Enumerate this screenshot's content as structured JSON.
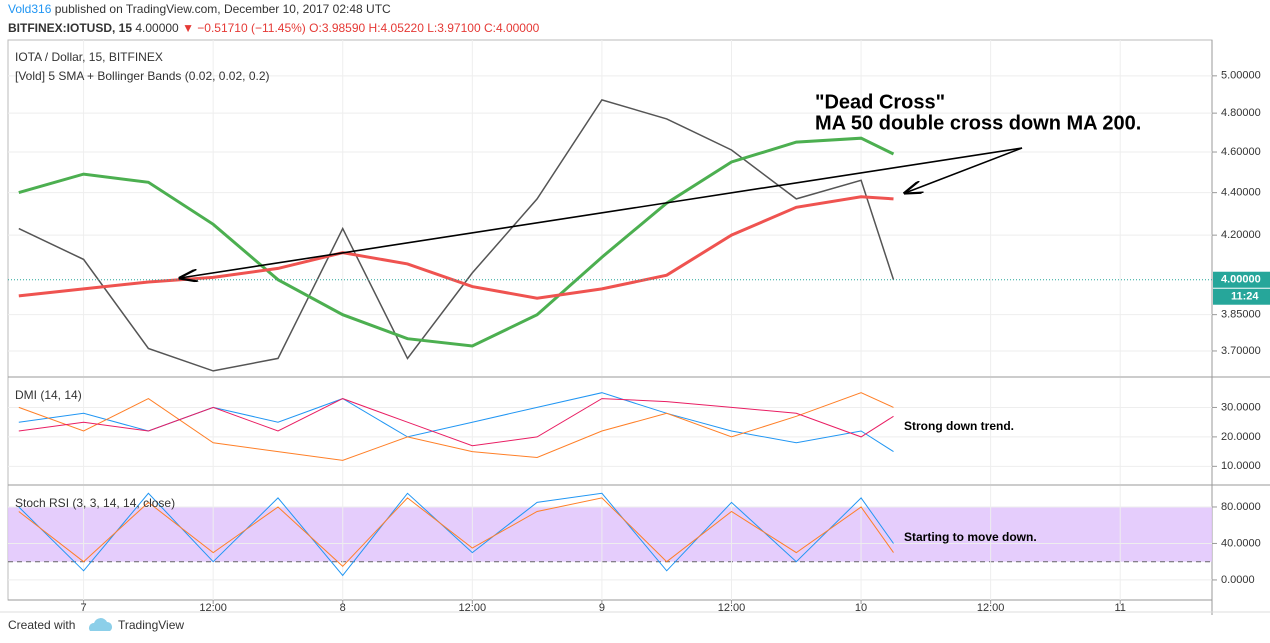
{
  "header": {
    "author": "Vold316",
    "published": " published on TradingView.com, December 10, 2017 02:48 UTC",
    "symbol": "BITFINEX:IOTUSD, 15",
    "last": " 4.00000 ",
    "change": "▼ −0.51710 (−11.45%)",
    "ohlc": " O:3.98590 H:4.05220 L:3.97100 C:4.00000"
  },
  "footer": {
    "created": "Created with",
    "brand": "TradingView"
  },
  "chart_data": [
    {
      "type": "line",
      "title": "IOTA / Dollar, 15, BITFINEX",
      "subtitle": "[Vold] 5 SMA + Bollinger Bands (0.02, 0.02, 0.2)",
      "log": true,
      "ylim": [
        3.6,
        5.2
      ],
      "yticks": [
        {
          "value": 3.7,
          "label": "3.70000"
        },
        {
          "value": 3.85,
          "label": "3.85000"
        },
        {
          "value": 4.2,
          "label": "4.20000"
        },
        {
          "value": 4.4,
          "label": "4.40000"
        },
        {
          "value": 4.6,
          "label": "4.60000"
        },
        {
          "value": 4.8,
          "label": "4.80000"
        },
        {
          "value": 5.0,
          "label": "5.00000"
        }
      ],
      "xlim": [
        -7,
        104.5
      ],
      "x": [
        -6,
        0,
        6,
        12,
        18,
        24,
        30,
        36,
        42,
        48,
        54,
        60,
        66,
        72,
        75
      ],
      "series": [
        {
          "color": "#555555",
          "width": 1.5,
          "values": [
            4.23,
            4.09,
            3.71,
            3.62,
            3.67,
            4.23,
            3.67,
            4.03,
            4.37,
            4.87,
            4.77,
            4.61,
            4.37,
            4.46,
            4.0
          ]
        },
        {
          "color": "#4caf50",
          "width": 3,
          "values": [
            4.4,
            4.49,
            4.45,
            4.25,
            4.0,
            3.85,
            3.75,
            3.72,
            3.85,
            4.1,
            4.35,
            4.55,
            4.65,
            4.67,
            4.59
          ]
        },
        {
          "color": "#ef5350",
          "width": 3,
          "values": [
            3.93,
            3.96,
            3.99,
            4.01,
            4.05,
            4.12,
            4.07,
            3.97,
            3.92,
            3.96,
            4.02,
            4.2,
            4.33,
            4.38,
            4.37
          ]
        }
      ],
      "price_tag": {
        "value": 4.0,
        "label": "4.00000"
      },
      "time_tag": "11:24",
      "annotations": [
        "\"Dead Cross\"",
        "MA 50 double cross down MA 200."
      ]
    },
    {
      "type": "line",
      "title": "DMI (14, 14)",
      "ylim": [
        4,
        40
      ],
      "yticks": [
        {
          "value": 10,
          "label": "10.0000"
        },
        {
          "value": 20,
          "label": "20.0000"
        },
        {
          "value": 30,
          "label": "30.0000"
        }
      ],
      "xlim": [
        -7,
        104.5
      ],
      "x": [
        -6,
        0,
        6,
        12,
        18,
        24,
        30,
        36,
        42,
        48,
        54,
        60,
        66,
        72,
        75
      ],
      "series": [
        {
          "color": "#2196f3",
          "width": 1,
          "values": [
            25,
            28,
            22,
            30,
            25,
            33,
            20,
            25,
            30,
            35,
            28,
            22,
            18,
            22,
            15
          ]
        },
        {
          "color": "#ff7f27",
          "width": 1,
          "values": [
            30,
            22,
            33,
            18,
            15,
            12,
            20,
            15,
            13,
            22,
            28,
            20,
            27,
            35,
            30
          ]
        },
        {
          "color": "#e91e63",
          "width": 1,
          "values": [
            22,
            25,
            22,
            30,
            22,
            33,
            25,
            17,
            20,
            33,
            32,
            30,
            28,
            20,
            27
          ]
        }
      ],
      "annotations": [
        "Strong down trend."
      ]
    },
    {
      "type": "line",
      "title": "Stoch RSI (3, 3, 14, 14, close)",
      "ylim": [
        -22,
        103
      ],
      "band": [
        20,
        80
      ],
      "yticks": [
        {
          "value": 0,
          "label": "0.0000"
        },
        {
          "value": 40,
          "label": "40.0000"
        },
        {
          "value": 80,
          "label": "80.0000"
        }
      ],
      "xlim": [
        -7,
        104.5
      ],
      "x": [
        -6,
        0,
        6,
        12,
        18,
        24,
        30,
        36,
        42,
        48,
        54,
        60,
        66,
        72,
        75
      ],
      "xticks": [
        {
          "value": 0,
          "label": "7"
        },
        {
          "value": 12,
          "label": "12:00"
        },
        {
          "value": 24,
          "label": "8"
        },
        {
          "value": 36,
          "label": "12:00"
        },
        {
          "value": 48,
          "label": "9"
        },
        {
          "value": 60,
          "label": "12:00"
        },
        {
          "value": 72,
          "label": "10"
        },
        {
          "value": 84,
          "label": "12:00"
        },
        {
          "value": 96,
          "label": "11"
        }
      ],
      "series": [
        {
          "color": "#2196f3",
          "width": 1,
          "values": [
            80,
            10,
            95,
            20,
            90,
            5,
            95,
            30,
            85,
            95,
            10,
            85,
            20,
            90,
            40
          ]
        },
        {
          "color": "#ff7f27",
          "width": 1,
          "values": [
            75,
            20,
            85,
            30,
            80,
            15,
            90,
            35,
            75,
            90,
            20,
            75,
            30,
            80,
            30
          ]
        }
      ],
      "annotations": [
        "Starting to move down."
      ]
    }
  ]
}
